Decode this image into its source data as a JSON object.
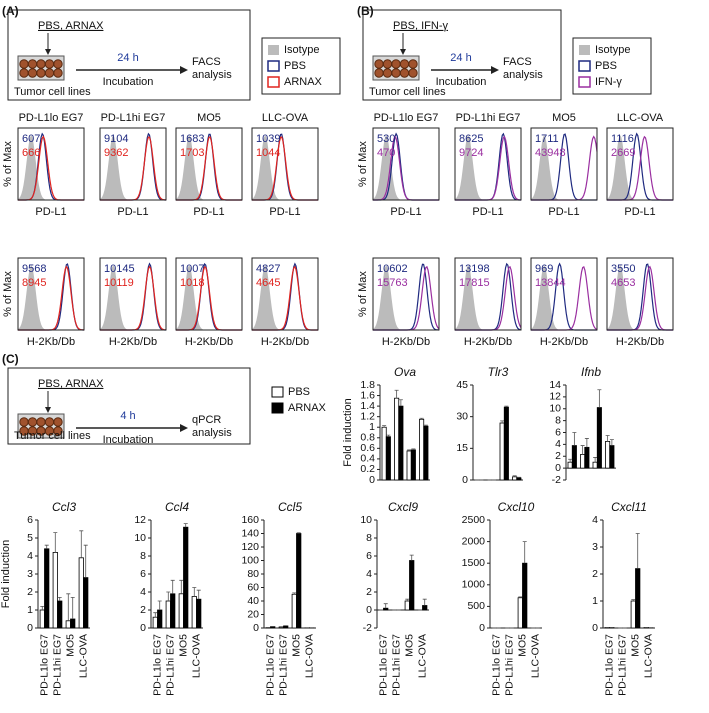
{
  "panels": [
    {
      "label": "(A)",
      "schematic": {
        "treatment": "PBS, ARNAX",
        "time": "24 h",
        "step": "Incubation",
        "readout": [
          "FACS",
          "analysis"
        ],
        "cells": "Tumor cell lines"
      },
      "legend": [
        {
          "name": "Isotype",
          "color": "#bbbbbb"
        },
        {
          "name": "PBS",
          "color": "#1f2a80"
        },
        {
          "name": "ARNAX",
          "color": "#e0241f"
        }
      ],
      "ylabel": "% of Max",
      "rows": [
        {
          "marker": "PD-L1",
          "plots": [
            {
              "title": "PD-L1lo EG7",
              "values": [
                607,
                666
              ]
            },
            {
              "title": "PD-L1hi EG7",
              "values": [
                9104,
                9362
              ]
            },
            {
              "title": "MO5",
              "values": [
                1683,
                1703
              ]
            },
            {
              "title": "LLC-OVA",
              "values": [
                1039,
                1044
              ]
            }
          ]
        },
        {
          "marker": "H-2Kb/Db",
          "plots": [
            {
              "values": [
                9568,
                8945
              ]
            },
            {
              "values": [
                10145,
                10119
              ]
            },
            {
              "values": [
                1007,
                1018
              ]
            },
            {
              "values": [
                4827,
                4645
              ]
            }
          ]
        }
      ]
    },
    {
      "label": "(B)",
      "schematic": {
        "treatment": "PBS, IFN-γ",
        "time": "24 h",
        "step": "Incubation",
        "readout": [
          "FACS",
          "analysis"
        ],
        "cells": "Tumor cell lines"
      },
      "legend": [
        {
          "name": "Isotype",
          "color": "#bbbbbb"
        },
        {
          "name": "PBS",
          "color": "#1f2a80"
        },
        {
          "name": "IFN-γ",
          "color": "#9a2fa0"
        }
      ],
      "ylabel": "% of Max",
      "rows": [
        {
          "marker": "PD-L1",
          "plots": [
            {
              "title": "PD-L1lo EG7",
              "values": [
                530,
                470
              ]
            },
            {
              "title": "PD-L1hi EG7",
              "values": [
                8625,
                9724
              ]
            },
            {
              "title": "MO5",
              "values": [
                1711,
                43948
              ]
            },
            {
              "title": "LLC-OVA",
              "values": [
                1116,
                2669
              ]
            }
          ]
        },
        {
          "marker": "H-2Kb/Db",
          "plots": [
            {
              "values": [
                10602,
                15763
              ]
            },
            {
              "values": [
                13198,
                17815
              ]
            },
            {
              "values": [
                969,
                13844
              ]
            },
            {
              "values": [
                3550,
                4653
              ]
            }
          ]
        }
      ]
    }
  ],
  "panel_c": {
    "label": "(C)",
    "schematic": {
      "treatment": "PBS, ARNAX",
      "time": "4 h",
      "step": "Incubation",
      "readout": [
        "qPCR",
        "analysis"
      ],
      "cells": "Tumor cell lines"
    }
  },
  "chart_data": [
    {
      "type": "bar",
      "title": "Ova",
      "ylabel": "Fold induction",
      "categories": [
        null,
        null,
        null,
        null
      ],
      "ylim": [
        0,
        1.8
      ],
      "yticks": [
        0,
        0.2,
        0.4,
        0.6,
        0.8,
        1,
        1.2,
        1.4,
        1.6,
        1.8
      ],
      "series": [
        {
          "name": "PBS",
          "color": "#ffffff",
          "values": [
            1.0,
            1.55,
            0.55,
            1.15
          ],
          "errors": [
            0.03,
            0.15,
            0.02,
            0.02
          ]
        },
        {
          "name": "ARNAX",
          "color": "#000000",
          "values": [
            0.82,
            1.4,
            0.57,
            1.02
          ],
          "errors": [
            0.03,
            0.12,
            0.02,
            0.02
          ]
        }
      ]
    },
    {
      "type": "bar",
      "title": "Tlr3",
      "categories": [
        null,
        null,
        null,
        null
      ],
      "ylim": [
        0,
        45
      ],
      "yticks": [
        0,
        15,
        30,
        45
      ],
      "series": [
        {
          "name": "PBS",
          "color": "#ffffff",
          "values": [
            0,
            0,
            27,
            1.5
          ],
          "errors": [
            0,
            0,
            1,
            0.5
          ]
        },
        {
          "name": "ARNAX",
          "color": "#000000",
          "values": [
            0,
            0,
            34.5,
            1
          ],
          "errors": [
            0,
            0,
            0.5,
            0.3
          ]
        }
      ]
    },
    {
      "type": "bar",
      "title": "Ifnb",
      "categories": [
        null,
        null,
        null,
        null
      ],
      "ylim": [
        -2,
        14
      ],
      "yticks": [
        -2,
        0,
        2,
        4,
        6,
        8,
        10,
        12,
        14
      ],
      "series": [
        {
          "name": "PBS",
          "color": "#ffffff",
          "values": [
            1,
            2.3,
            1,
            4.5
          ],
          "errors": [
            0.5,
            1.5,
            0.8,
            1
          ]
        },
        {
          "name": "ARNAX",
          "color": "#000000",
          "values": [
            3.8,
            3.5,
            10.2,
            3.8
          ],
          "errors": [
            2.2,
            1.5,
            3,
            1
          ]
        }
      ]
    },
    {
      "type": "bar",
      "title": "Ccl3",
      "ylabel": "Fold induction",
      "categories": [
        "PD-L1lo EG7",
        "PD-L1hi EG7",
        "MO5",
        "LLC-OVA"
      ],
      "ylim": [
        0,
        6
      ],
      "yticks": [
        0,
        1,
        2,
        3,
        4,
        5,
        6
      ],
      "series": [
        {
          "name": "PBS",
          "color": "#ffffff",
          "values": [
            1,
            4.2,
            0.4,
            3.9
          ],
          "errors": [
            0.2,
            1.1,
            1.5,
            1.5
          ]
        },
        {
          "name": "ARNAX",
          "color": "#000000",
          "values": [
            4.4,
            1.5,
            0.5,
            2.8
          ],
          "errors": [
            0.2,
            0.2,
            1.2,
            1.8
          ]
        }
      ]
    },
    {
      "type": "bar",
      "title": "Ccl4",
      "categories": [
        "PD-L1lo EG7",
        "PD-L1hi EG7",
        "MO5",
        "LLC-OVA"
      ],
      "ylim": [
        0,
        12
      ],
      "yticks": [
        0,
        2,
        4,
        6,
        8,
        10,
        12
      ],
      "series": [
        {
          "name": "PBS",
          "color": "#ffffff",
          "values": [
            1.2,
            3,
            3.8,
            3.5
          ],
          "errors": [
            0.5,
            1,
            1.5,
            1
          ]
        },
        {
          "name": "ARNAX",
          "color": "#000000",
          "values": [
            2,
            3.8,
            11.2,
            3.2
          ],
          "errors": [
            1,
            1.5,
            0.4,
            1
          ]
        }
      ]
    },
    {
      "type": "bar",
      "title": "Ccl5",
      "categories": [
        "PD-L1lo EG7",
        "PD-L1hi EG7",
        "MO5",
        "LLC-OVA"
      ],
      "ylim": [
        0,
        160
      ],
      "yticks": [
        0,
        20,
        40,
        60,
        80,
        100,
        120,
        140,
        160
      ],
      "series": [
        {
          "name": "PBS",
          "color": "#ffffff",
          "values": [
            0.5,
            1.5,
            50,
            0.3
          ],
          "errors": [
            0.2,
            0.5,
            2,
            0.1
          ]
        },
        {
          "name": "ARNAX",
          "color": "#000000",
          "values": [
            2,
            3,
            140,
            0.3
          ],
          "errors": [
            0.3,
            0.5,
            1,
            0.1
          ]
        }
      ]
    },
    {
      "type": "bar",
      "title": "Cxcl9",
      "categories": [
        "PD-L1lo EG7",
        "PD-L1hi EG7",
        "MO5",
        "LLC-OVA"
      ],
      "ylim": [
        -2,
        10
      ],
      "yticks": [
        -2,
        0,
        2,
        4,
        6,
        8,
        10
      ],
      "series": [
        {
          "name": "PBS",
          "color": "#ffffff",
          "values": [
            0,
            0,
            1,
            0
          ],
          "errors": [
            0,
            0,
            0.2,
            0
          ]
        },
        {
          "name": "ARNAX",
          "color": "#000000",
          "values": [
            0.2,
            0,
            5.5,
            0.5
          ],
          "errors": [
            0.5,
            0,
            0.6,
            0.7
          ]
        }
      ]
    },
    {
      "type": "bar",
      "title": "Cxcl10",
      "categories": [
        "PD-L1lo EG7",
        "PD-L1hi EG7",
        "MO5",
        "LLC-OVA"
      ],
      "ylim": [
        0,
        2500
      ],
      "yticks": [
        0,
        500,
        1000,
        1500,
        2000,
        2500
      ],
      "series": [
        {
          "name": "PBS",
          "color": "#ffffff",
          "values": [
            0,
            0,
            700,
            0
          ],
          "errors": [
            0,
            0,
            20,
            0
          ]
        },
        {
          "name": "ARNAX",
          "color": "#000000",
          "values": [
            0,
            0,
            1500,
            0
          ],
          "errors": [
            0,
            0,
            500,
            0
          ]
        }
      ]
    },
    {
      "type": "bar",
      "title": "Cxcl11",
      "categories": [
        "PD-L1lo EG7",
        "PD-L1hi EG7",
        "MO5",
        "LLC-OVA"
      ],
      "ylim": [
        0,
        4
      ],
      "yticks": [
        0,
        1,
        2,
        3,
        4
      ],
      "series": [
        {
          "name": "PBS",
          "color": "#ffffff",
          "values": [
            0.02,
            0,
            1,
            0.02
          ],
          "errors": [
            0,
            0,
            0.05,
            0
          ]
        },
        {
          "name": "ARNAX",
          "color": "#000000",
          "values": [
            0.02,
            0,
            2.2,
            0.01
          ],
          "errors": [
            0,
            0,
            1.3,
            0
          ]
        }
      ]
    }
  ]
}
